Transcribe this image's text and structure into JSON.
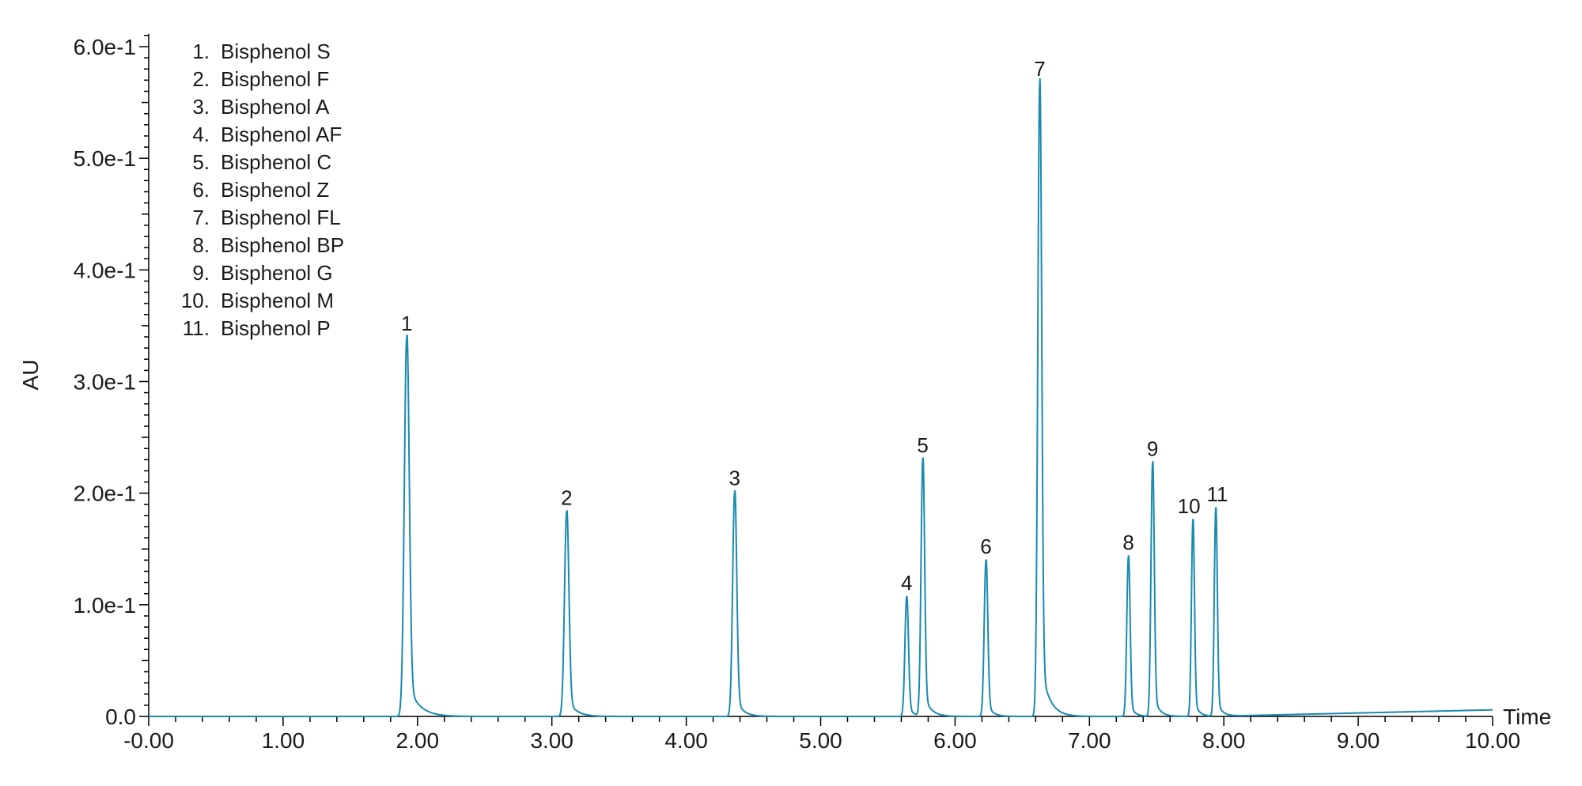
{
  "chart_data": {
    "type": "line",
    "xlabel": "Time",
    "ylabel": "AU",
    "xlim": [
      0,
      10
    ],
    "ylim": [
      0,
      0.61
    ],
    "x_ticks": [
      {
        "value": 0,
        "label": "-0.00"
      },
      {
        "value": 1,
        "label": "1.00"
      },
      {
        "value": 2,
        "label": "2.00"
      },
      {
        "value": 3,
        "label": "3.00"
      },
      {
        "value": 4,
        "label": "4.00"
      },
      {
        "value": 5,
        "label": "5.00"
      },
      {
        "value": 6,
        "label": "6.00"
      },
      {
        "value": 7,
        "label": "7.00"
      },
      {
        "value": 8,
        "label": "8.00"
      },
      {
        "value": 9,
        "label": "9.00"
      },
      {
        "value": 10,
        "label": "10.00"
      }
    ],
    "y_ticks": [
      {
        "value": 0,
        "label": "0.0"
      },
      {
        "value": 0.1,
        "label": "1.0e-1"
      },
      {
        "value": 0.2,
        "label": "2.0e-1"
      },
      {
        "value": 0.3,
        "label": "3.0e-1"
      },
      {
        "value": 0.4,
        "label": "4.0e-1"
      },
      {
        "value": 0.5,
        "label": "5.0e-1"
      },
      {
        "value": 0.6,
        "label": "6.0e-1"
      }
    ],
    "grid": false,
    "legend_position": "top-left",
    "line_color": "#1a8ab0",
    "peaks": [
      {
        "label": "1",
        "name": "Bisphenol S",
        "rt": 1.92,
        "height": 0.365,
        "width": 0.018,
        "tail": 0.08
      },
      {
        "label": "2",
        "name": "Bisphenol F",
        "rt": 3.11,
        "height": 0.197,
        "width": 0.016,
        "tail": 0.06
      },
      {
        "label": "3",
        "name": "Bisphenol A",
        "rt": 4.36,
        "height": 0.216,
        "width": 0.015,
        "tail": 0.05
      },
      {
        "label": "4",
        "name": "Bisphenol AF",
        "rt": 5.64,
        "height": 0.115,
        "width": 0.013,
        "tail": 0.04
      },
      {
        "label": "5",
        "name": "Bisphenol C",
        "rt": 5.76,
        "height": 0.247,
        "width": 0.013,
        "tail": 0.05
      },
      {
        "label": "6",
        "name": "Bisphenol Z",
        "rt": 6.23,
        "height": 0.15,
        "width": 0.013,
        "tail": 0.04
      },
      {
        "label": "7",
        "name": "Bisphenol FL",
        "rt": 6.63,
        "height": 0.61,
        "width": 0.014,
        "tail": 0.06
      },
      {
        "label": "8",
        "name": "Bisphenol BP",
        "rt": 7.29,
        "height": 0.154,
        "width": 0.012,
        "tail": 0.035
      },
      {
        "label": "9",
        "name": "Bisphenol G",
        "rt": 7.47,
        "height": 0.244,
        "width": 0.012,
        "tail": 0.04
      },
      {
        "label": "10",
        "name": "Bisphenol M",
        "rt": 7.77,
        "height": 0.189,
        "width": 0.011,
        "tail": 0.035
      },
      {
        "label": "11",
        "name": "Bisphenol P",
        "rt": 7.94,
        "height": 0.2,
        "width": 0.011,
        "tail": 0.035
      }
    ],
    "legend": [
      {
        "number": "1.",
        "name": "Bisphenol S"
      },
      {
        "number": "2.",
        "name": "Bisphenol F"
      },
      {
        "number": "3.",
        "name": "Bisphenol A"
      },
      {
        "number": "4.",
        "name": "Bisphenol AF"
      },
      {
        "number": "5.",
        "name": "Bisphenol C"
      },
      {
        "number": "6.",
        "name": "Bisphenol Z"
      },
      {
        "number": "7.",
        "name": "Bisphenol FL"
      },
      {
        "number": "8.",
        "name": "Bisphenol BP"
      },
      {
        "number": "9.",
        "name": "Bisphenol G"
      },
      {
        "number": "10.",
        "name": "Bisphenol M"
      },
      {
        "number": "11.",
        "name": "Bisphenol P"
      }
    ]
  }
}
